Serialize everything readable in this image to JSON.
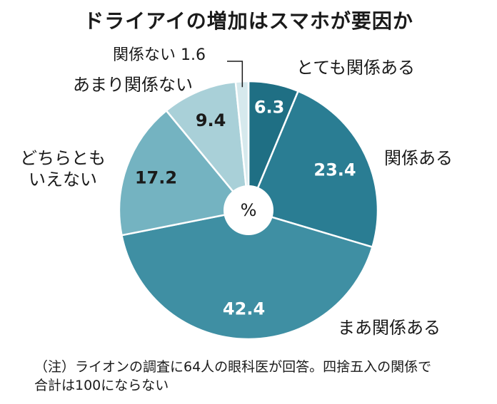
{
  "chart_data": {
    "type": "pie",
    "title": "ドライアイの増加はスマホが要因か",
    "center_label": "%",
    "slices": [
      {
        "label": "とても関係ある",
        "value": 6.3,
        "value_label": "6.3",
        "color": "#1f6f84"
      },
      {
        "label": "関係ある",
        "value": 23.4,
        "value_label": "23.4",
        "color": "#2a7d93"
      },
      {
        "label": "まあ関係ある",
        "value": 42.4,
        "value_label": "42.4",
        "color": "#3f8fa3"
      },
      {
        "label": "どちらとも\nいえない",
        "value": 17.2,
        "value_label": "17.2",
        "color": "#74b3c1"
      },
      {
        "label": "あまり関係ない",
        "value": 9.4,
        "value_label": "9.4",
        "color": "#a9d0d8"
      },
      {
        "label": "関係ない",
        "value": 1.6,
        "value_label": "1.6",
        "color": "#d6e9ed"
      }
    ]
  },
  "footnote": {
    "line1": "（注）ライオンの調査に64人の眼科医が回答。四捨五入の関係で",
    "line2": "合計は100にならない"
  }
}
